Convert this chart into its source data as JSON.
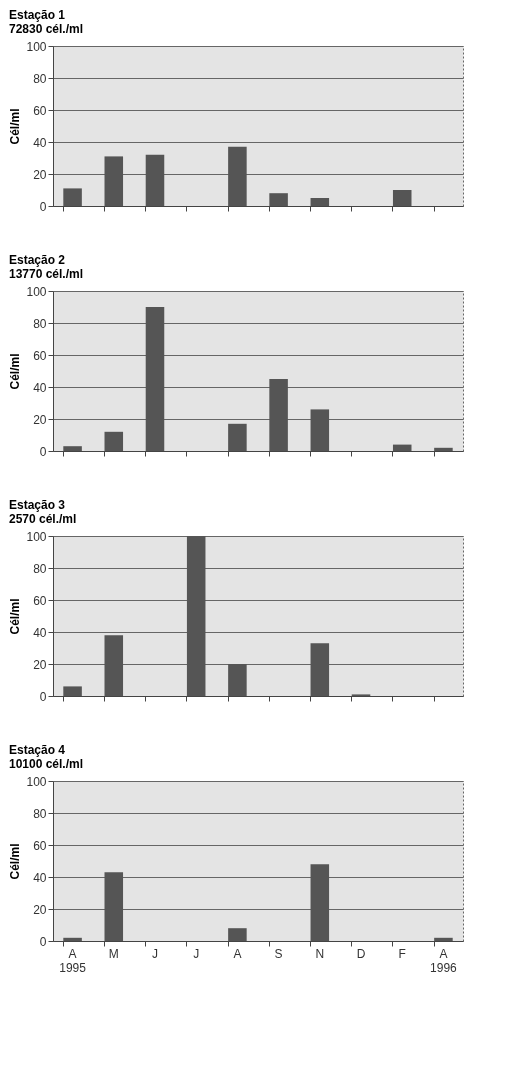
{
  "chart_data": [
    {
      "type": "bar",
      "title": "Estação 1",
      "subtitle": "72830 cél./ml",
      "ylabel": "Cél/ml",
      "categories": [
        null,
        null,
        null,
        null,
        null,
        null,
        null,
        null,
        null,
        null
      ],
      "values": [
        11,
        31,
        32,
        0,
        37,
        8,
        5,
        0,
        10,
        0
      ],
      "color": "#555555",
      "ylim": [
        0,
        100
      ],
      "yticks": [
        0,
        20,
        40,
        60,
        80,
        100
      ],
      "grid": "y",
      "tick_labels": "y"
    },
    {
      "type": "bar",
      "title": "Estação 2",
      "subtitle": "13770 cél./ml",
      "ylabel": "Cél/ml",
      "categories": [
        null,
        null,
        null,
        null,
        null,
        null,
        null,
        null,
        null,
        null
      ],
      "values": [
        3,
        12,
        90,
        0,
        17,
        45,
        26,
        0,
        4,
        2
      ],
      "color": "#555555",
      "ylim": [
        0,
        100
      ],
      "yticks": [
        0,
        20,
        40,
        60,
        80,
        100
      ],
      "grid": "y",
      "tick_labels": "y"
    },
    {
      "type": "bar",
      "title": "Estação 3",
      "subtitle": "2570 cél./ml",
      "ylabel": "Cél/ml",
      "categories": [
        null,
        null,
        null,
        null,
        null,
        null,
        null,
        null,
        null,
        null
      ],
      "values": [
        6,
        38,
        0,
        100,
        20,
        0,
        33,
        1,
        0,
        0
      ],
      "color": "#555555",
      "ylim": [
        0,
        100
      ],
      "yticks": [
        0,
        20,
        40,
        60,
        80,
        100
      ],
      "grid": "y",
      "tick_labels": "y"
    },
    {
      "type": "bar",
      "title": "Estação 4",
      "subtitle": "10100 cél./ml",
      "ylabel": "Cél/ml",
      "categories": [
        "A\n1995",
        "M",
        "J",
        "J",
        "A",
        "S",
        "N",
        "D",
        "F",
        "A\n1996"
      ],
      "values": [
        2,
        43,
        0,
        0,
        8,
        0,
        48,
        0,
        0,
        2
      ],
      "color": "#555555",
      "ylim": [
        0,
        100
      ],
      "yticks": [
        0,
        20,
        40,
        60,
        80,
        100
      ],
      "grid": "y"
    }
  ]
}
